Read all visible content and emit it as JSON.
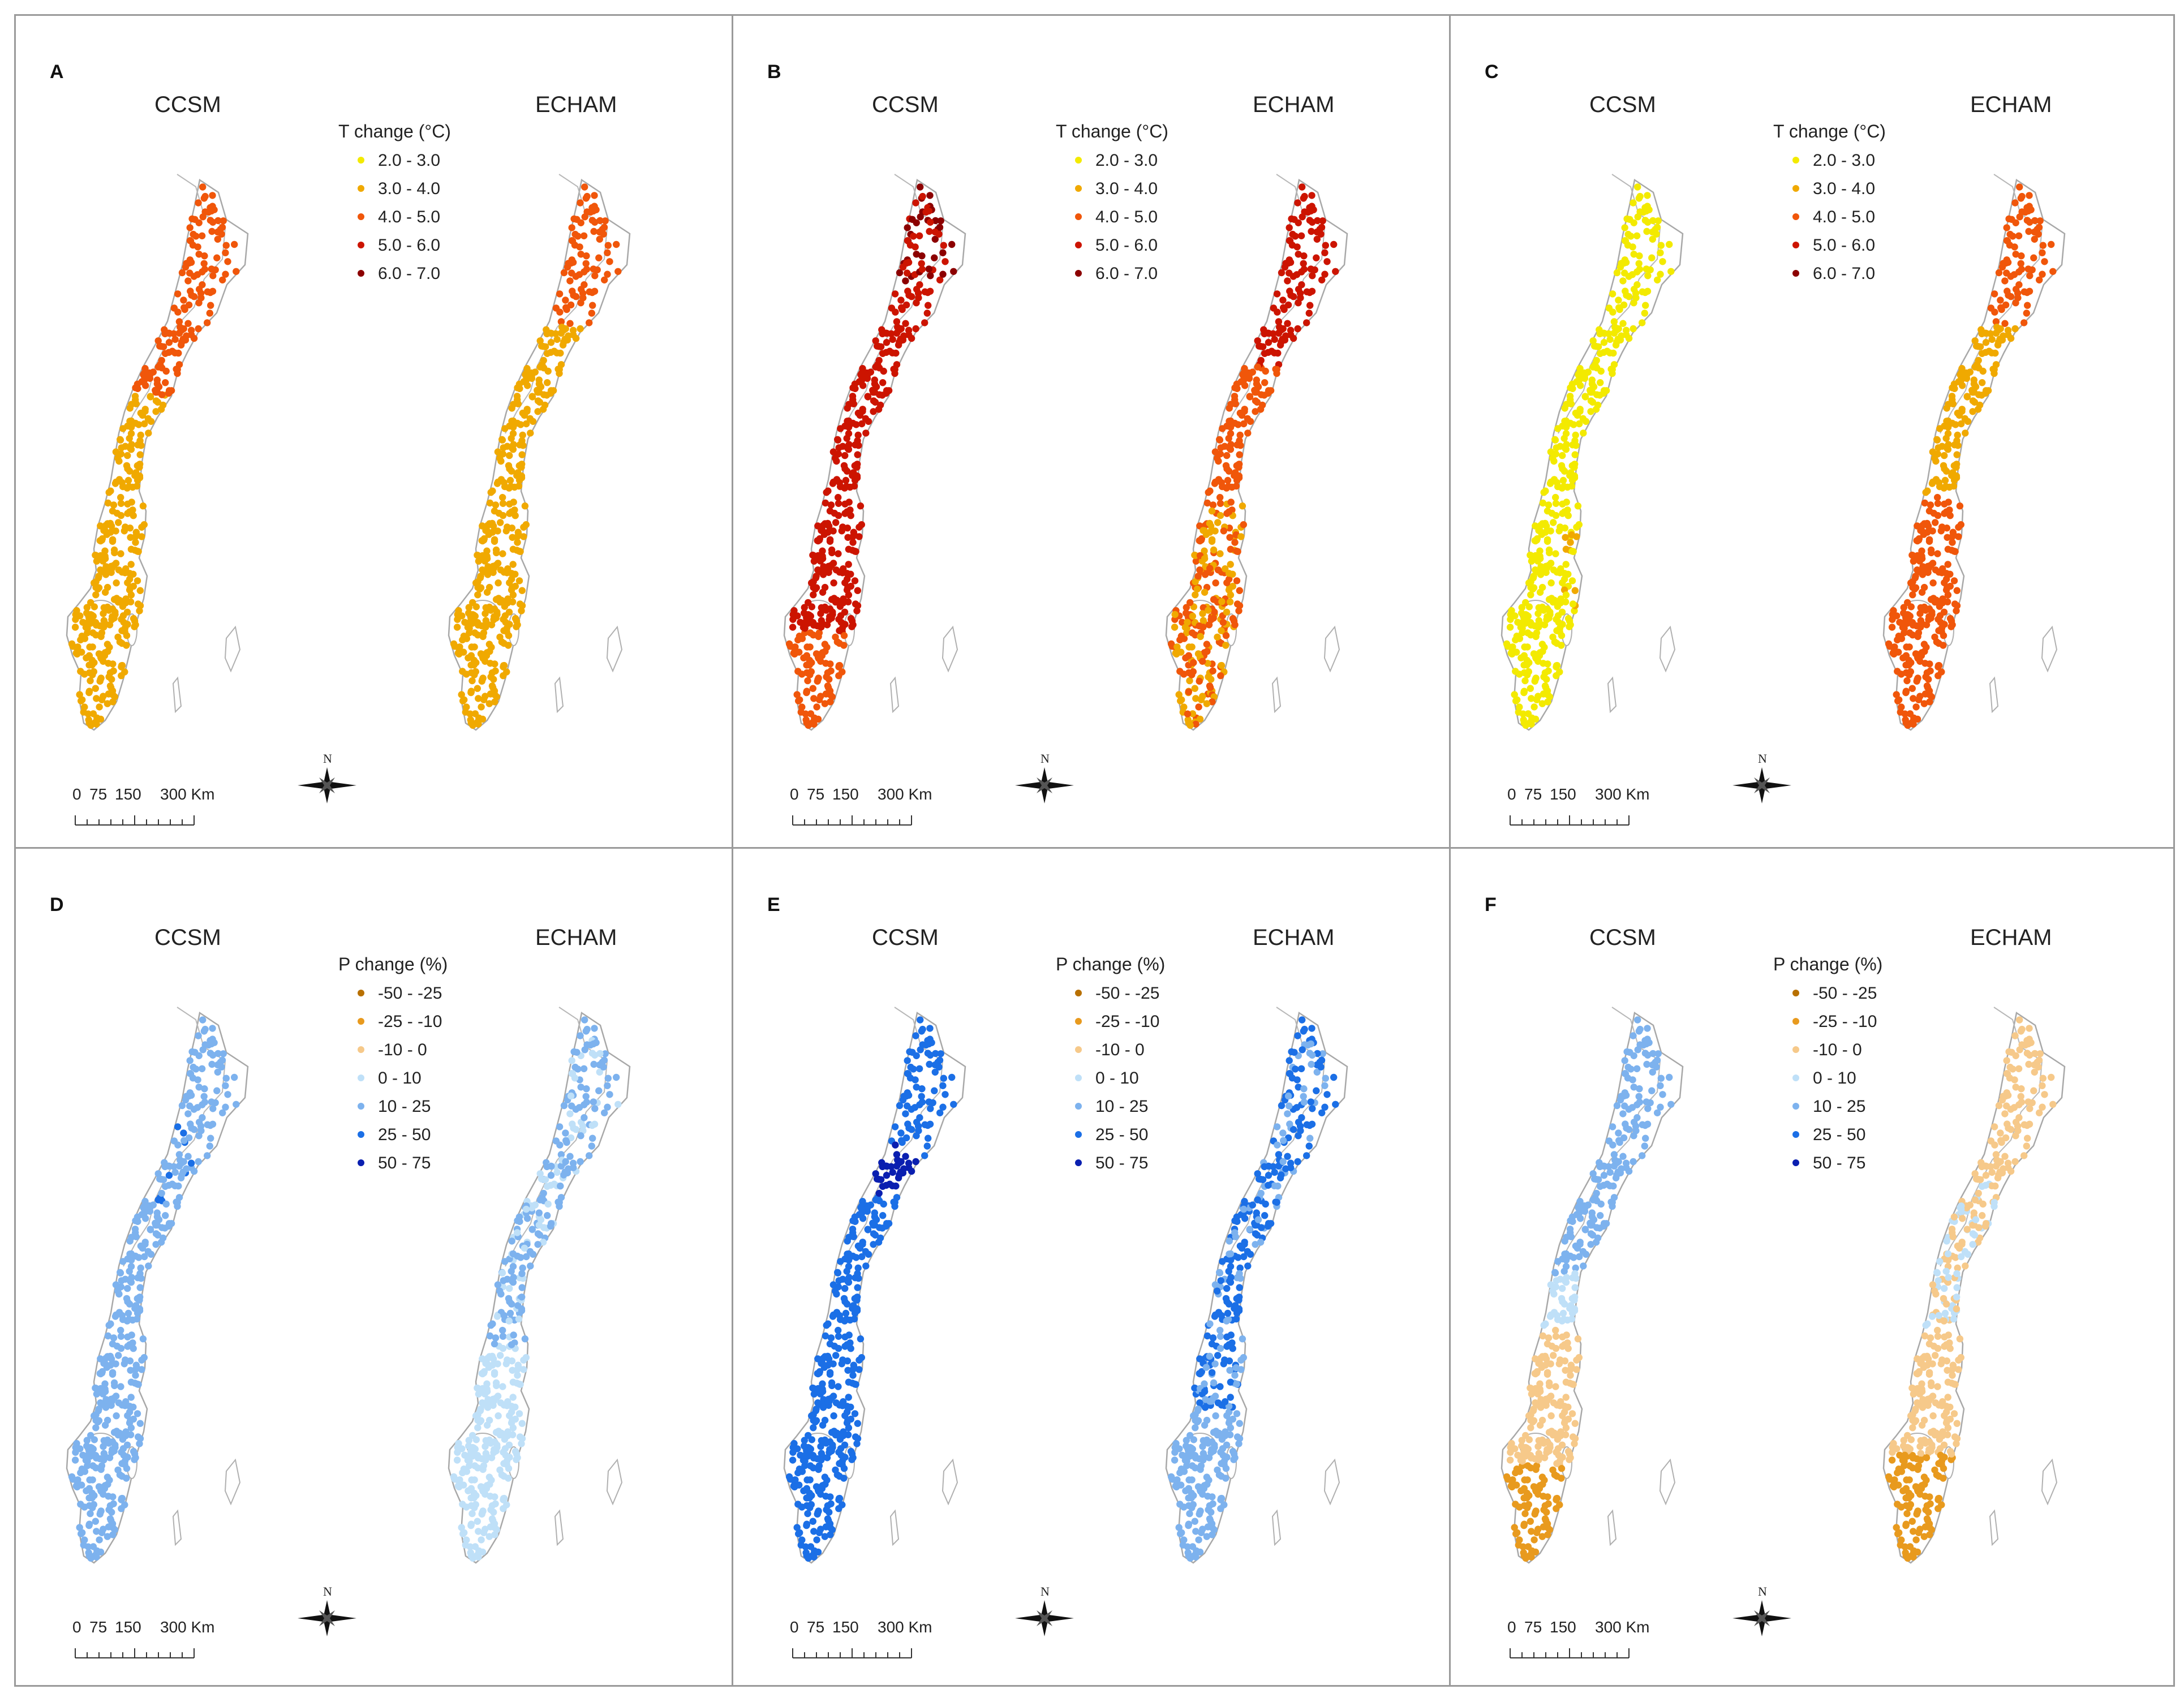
{
  "figure": {
    "panels": [
      {
        "letter": "A",
        "left_model": "CCSM",
        "right_model": "ECHAM",
        "variable": "temperature",
        "scheme": [
          "#ff9500",
          "#ff9500"
        ]
      },
      {
        "letter": "B",
        "left_model": "CCSM",
        "right_model": "ECHAM",
        "variable": "temperature",
        "scheme": [
          "#c80000",
          "#e8200a"
        ]
      },
      {
        "letter": "C",
        "left_model": "CCSM",
        "right_model": "ECHAM",
        "variable": "temperature",
        "scheme": [
          "#f0ec00",
          "#ff7a00"
        ]
      },
      {
        "letter": "D",
        "left_model": "CCSM",
        "right_model": "ECHAM",
        "variable": "precipitation",
        "scheme": [
          "#79aff2",
          "#a9d3f6"
        ]
      },
      {
        "letter": "E",
        "left_model": "CCSM",
        "right_model": "ECHAM",
        "variable": "precipitation",
        "scheme": [
          "#1566e3",
          "#4a8fee"
        ]
      },
      {
        "letter": "F",
        "left_model": "CCSM",
        "right_model": "ECHAM",
        "variable": "precipitation",
        "scheme": [
          "#a8d0f6",
          "#f4c07a"
        ]
      }
    ],
    "legends": {
      "temperature": {
        "title": "T change (°C)",
        "classes": [
          {
            "label": "2.0 - 3.0",
            "color": "#f3ea00"
          },
          {
            "label": "3.0 - 4.0",
            "color": "#f0a900"
          },
          {
            "label": "4.0 - 5.0",
            "color": "#f0560a"
          },
          {
            "label": "5.0 - 6.0",
            "color": "#cc1400"
          },
          {
            "label": "6.0 - 7.0",
            "color": "#8c0000"
          }
        ]
      },
      "precipitation": {
        "title": "P change (%)",
        "classes": [
          {
            "label": "-50 - -25",
            "color": "#b87000"
          },
          {
            "label": "-25 - -10",
            "color": "#e89a1e"
          },
          {
            "label": "-10 - 0",
            "color": "#f6c98a"
          },
          {
            "label": "0 - 10",
            "color": "#bfe0f8"
          },
          {
            "label": "10 - 25",
            "color": "#7db2ee"
          },
          {
            "label": "25 - 50",
            "color": "#1b6fe6"
          },
          {
            "label": "50 - 75",
            "color": "#0a1fb0"
          }
        ]
      }
    },
    "scalebar": {
      "labels": [
        "0",
        "75",
        "150",
        "300 Km"
      ]
    },
    "north_arrow": {
      "label": "N",
      "icon": "north-arrow-icon"
    }
  }
}
